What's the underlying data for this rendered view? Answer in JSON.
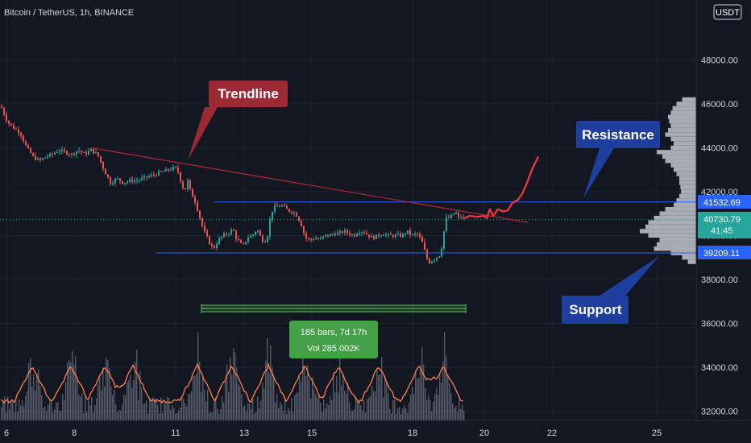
{
  "header": {
    "title": "Bitcoin / TetherUS, 1h, BINANCE",
    "currency": "USDT"
  },
  "annotations": {
    "trendline": "Trendline",
    "resistance": "Resistance",
    "support": "Support",
    "range_bars": "185 bars, 7d 17h",
    "range_vol": "Vol 285.002K"
  },
  "price_badges": {
    "resistance": "41532.69",
    "current": "40730.79",
    "countdown": "41:45",
    "support": "39209.11"
  },
  "colors": {
    "background": "#131722",
    "candle_up": "#26a69a",
    "candle_down": "#ef5350",
    "trendline": "#b22833",
    "level_line": "#2962ff",
    "callout_red": "#9c2a34",
    "callout_blue": "#1e3f9e",
    "projection": "#e8363c",
    "volume_ma": "#ff7f50",
    "range_green": "#4caf50"
  },
  "chart_data": {
    "type": "candlestick",
    "y_ticks": [
      "48000.00",
      "46000.00",
      "44000.00",
      "42000.00",
      "40000.00",
      "38000.00",
      "36000.00",
      "34000.00",
      "32000.00"
    ],
    "x_ticks": [
      "6",
      "8",
      "11",
      "13",
      "15",
      "18",
      "20",
      "22",
      "25"
    ],
    "ylim": [
      31500,
      50500
    ],
    "levels": {
      "resistance": 41532.69,
      "support": 39209.11
    },
    "path": [
      [
        0,
        45900
      ],
      [
        8,
        45200
      ],
      [
        16,
        44900
      ],
      [
        24,
        44700
      ],
      [
        32,
        44000
      ],
      [
        40,
        43600
      ],
      [
        48,
        43400
      ],
      [
        56,
        43600
      ],
      [
        64,
        43700
      ],
      [
        72,
        43900
      ],
      [
        80,
        43800
      ],
      [
        88,
        43700
      ],
      [
        96,
        43900
      ],
      [
        104,
        43700
      ],
      [
        112,
        43900
      ],
      [
        120,
        43700
      ],
      [
        128,
        43000
      ],
      [
        136,
        42400
      ],
      [
        144,
        42600
      ],
      [
        152,
        42400
      ],
      [
        160,
        42500
      ],
      [
        168,
        42500
      ],
      [
        176,
        42600
      ],
      [
        184,
        42700
      ],
      [
        192,
        42800
      ],
      [
        200,
        42900
      ],
      [
        208,
        43000
      ],
      [
        216,
        43100
      ],
      [
        220,
        42900
      ],
      [
        224,
        42400
      ],
      [
        228,
        42000
      ],
      [
        232,
        42500
      ],
      [
        236,
        41900
      ],
      [
        240,
        41700
      ],
      [
        244,
        41200
      ],
      [
        248,
        40700
      ],
      [
        252,
        40200
      ],
      [
        256,
        39900
      ],
      [
        260,
        39600
      ],
      [
        264,
        39400
      ],
      [
        270,
        39800
      ],
      [
        276,
        40000
      ],
      [
        282,
        40100
      ],
      [
        288,
        40300
      ],
      [
        292,
        39900
      ],
      [
        296,
        39700
      ],
      [
        300,
        39500
      ],
      [
        306,
        39900
      ],
      [
        312,
        40000
      ],
      [
        318,
        40300
      ],
      [
        324,
        39800
      ],
      [
        330,
        39800
      ],
      [
        334,
        40700
      ],
      [
        338,
        41300
      ],
      [
        342,
        41300
      ],
      [
        348,
        41400
      ],
      [
        354,
        41200
      ],
      [
        360,
        41100
      ],
      [
        366,
        41000
      ],
      [
        372,
        40600
      ],
      [
        378,
        39900
      ],
      [
        384,
        39800
      ],
      [
        390,
        39900
      ],
      [
        396,
        39800
      ],
      [
        402,
        40000
      ],
      [
        408,
        40000
      ],
      [
        414,
        40100
      ],
      [
        420,
        40100
      ],
      [
        426,
        40200
      ],
      [
        432,
        40100
      ],
      [
        438,
        40000
      ],
      [
        444,
        40200
      ],
      [
        450,
        40200
      ],
      [
        456,
        40000
      ],
      [
        462,
        39900
      ],
      [
        468,
        40000
      ],
      [
        474,
        40100
      ],
      [
        480,
        40000
      ],
      [
        486,
        40000
      ],
      [
        492,
        40000
      ],
      [
        498,
        40000
      ],
      [
        504,
        40200
      ],
      [
        510,
        40000
      ],
      [
        516,
        40100
      ],
      [
        520,
        39900
      ],
      [
        524,
        39600
      ],
      [
        528,
        39000
      ],
      [
        532,
        38800
      ],
      [
        536,
        38900
      ],
      [
        540,
        39000
      ],
      [
        544,
        39100
      ],
      [
        548,
        39600
      ],
      [
        550,
        40200
      ],
      [
        553,
        40800
      ],
      [
        556,
        40800
      ],
      [
        560,
        40900
      ],
      [
        564,
        41100
      ],
      [
        568,
        40800
      ],
      [
        572,
        40900
      ],
      [
        575,
        40730
      ]
    ],
    "volume_profile": [
      [
        46200,
        0.25
      ],
      [
        46000,
        0.35
      ],
      [
        45800,
        0.42
      ],
      [
        45600,
        0.45
      ],
      [
        45400,
        0.5
      ],
      [
        45200,
        0.48
      ],
      [
        45000,
        0.45
      ],
      [
        44800,
        0.5
      ],
      [
        44600,
        0.55
      ],
      [
        44400,
        0.45
      ],
      [
        44200,
        0.4
      ],
      [
        44000,
        0.45
      ],
      [
        43800,
        0.7
      ],
      [
        43600,
        0.6
      ],
      [
        43400,
        0.55
      ],
      [
        43200,
        0.45
      ],
      [
        43000,
        0.4
      ],
      [
        42800,
        0.35
      ],
      [
        42600,
        0.3
      ],
      [
        42400,
        0.3
      ],
      [
        42200,
        0.28
      ],
      [
        42000,
        0.27
      ],
      [
        41800,
        0.3
      ],
      [
        41600,
        0.35
      ],
      [
        41400,
        0.4
      ],
      [
        41200,
        0.55
      ],
      [
        41000,
        0.65
      ],
      [
        40800,
        0.75
      ],
      [
        40600,
        0.85
      ],
      [
        40400,
        0.9
      ],
      [
        40200,
        1.0
      ],
      [
        40000,
        0.85
      ],
      [
        39800,
        0.65
      ],
      [
        39600,
        0.7
      ],
      [
        39400,
        0.75
      ],
      [
        39200,
        0.45
      ],
      [
        39000,
        0.25
      ],
      [
        38800,
        0.15
      ]
    ],
    "projection": [
      [
        576,
        40800
      ],
      [
        583,
        40900
      ],
      [
        592,
        40850
      ],
      [
        600,
        40900
      ],
      [
        604,
        40800
      ],
      [
        608,
        41200
      ],
      [
        612,
        40900
      ],
      [
        618,
        41200
      ],
      [
        624,
        41100
      ],
      [
        630,
        41150
      ],
      [
        636,
        41500
      ],
      [
        642,
        41600
      ],
      [
        648,
        41900
      ],
      [
        654,
        42400
      ],
      [
        660,
        43000
      ],
      [
        668,
        43600
      ]
    ],
    "trendline": {
      "from": [
        113,
        44000
      ],
      "to": [
        655,
        40600
      ]
    },
    "range": {
      "from_x": 250,
      "to_x": 578
    }
  }
}
